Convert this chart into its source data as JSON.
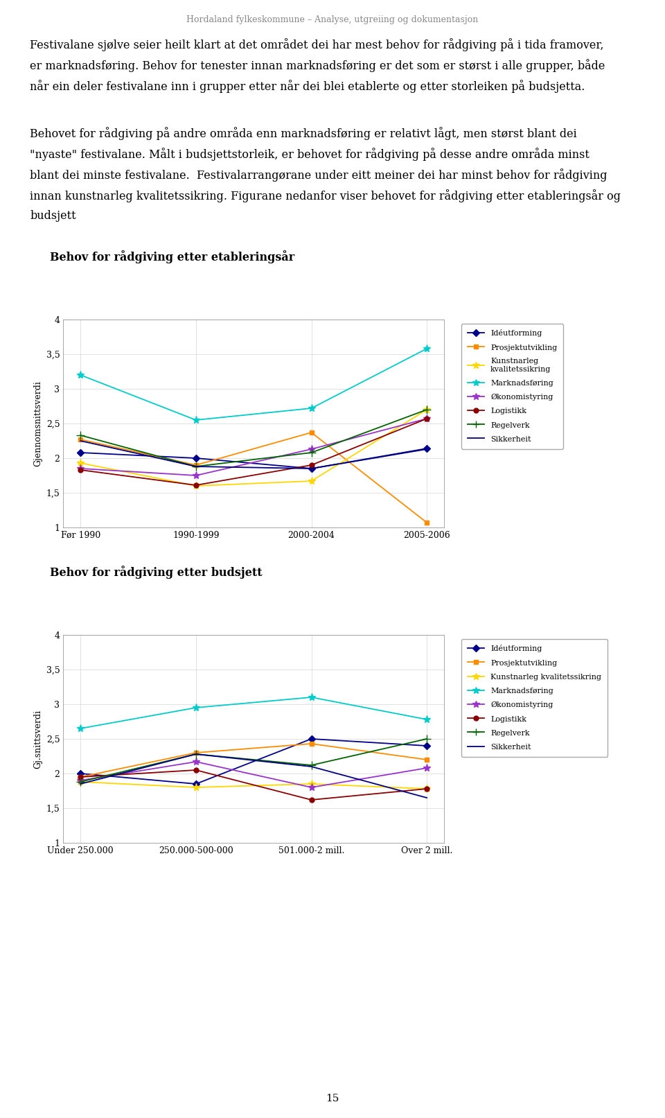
{
  "header_title": "Hordaland fylkeskommune – Analyse, utgreiing og dokumentasjon",
  "page_text_para1": [
    "Festivalane sjølve seier heilt klart at det området dei har mest behov for rådgiving på i tida framover,",
    "er marknadsføring. Behov for tenester innan marknadsføring er det som er størst i alle grupper, både",
    "når ein deler festivalane inn i grupper etter når dei blei etablerte og etter storleiken på budsjetta."
  ],
  "page_text_para2": [
    "Behovet for rådgiving på andre områda enn marknadsføring er relativt lågt, men størst blant dei",
    "\"nyaste\" festivalane. Målt i budsjettstorleik, er behovet for rådgiving på desse andre områda minst",
    "blant dei minste festivalane.  Festivalarrangørane under eitt meiner dei har minst behov for rådgiving",
    "innan kunstnarleg kvalitetssikring. Figurane nedanfor viser behovet for rådgiving etter etableringsår og",
    "budsjett"
  ],
  "chart1": {
    "title": "Behov for rådgiving etter etableringsår",
    "xlabel_categories": [
      "Før 1990",
      "1990-1999",
      "2000-2004",
      "2005-2006"
    ],
    "ylabel": "Gjennomsnittsverdi",
    "ylim": [
      1.0,
      4.0
    ],
    "yticks": [
      1.0,
      1.5,
      2.0,
      2.5,
      3.0,
      3.5,
      4.0
    ],
    "series": {
      "Idéutforming": [
        2.08,
        2.0,
        1.85,
        2.14
      ],
      "Prosjektutvikling": [
        2.27,
        1.9,
        2.37,
        1.07
      ],
      "Kunstnarleg kvalitetssikring": [
        1.93,
        1.6,
        1.67,
        2.7
      ],
      "Marknadsføring": [
        3.2,
        2.55,
        2.72,
        3.58
      ],
      "Økonomistyring": [
        1.85,
        1.75,
        2.13,
        2.57
      ],
      "Logistikk": [
        1.83,
        1.61,
        1.9,
        2.57
      ],
      "Regelverk": [
        2.33,
        1.88,
        2.08,
        2.7
      ],
      "Sikkerheit": [
        2.25,
        1.88,
        1.85,
        2.13
      ]
    },
    "colors": {
      "Idéutforming": "#00008B",
      "Prosjektutvikling": "#FF8C00",
      "Kunstnarleg kvalitetssikring": "#FFD700",
      "Marknadsføring": "#00CCCC",
      "Økonomistyring": "#9933CC",
      "Logistikk": "#8B0000",
      "Regelverk": "#006400",
      "Sikkerheit": "#000080"
    },
    "markers": {
      "Idéutforming": "D",
      "Prosjektutvikling": "s",
      "Kunstnarleg kvalitetssikring": "*",
      "Marknadsføring": "*",
      "Økonomistyring": "*",
      "Logistikk": "o",
      "Regelverk": "+",
      "Sikkerheit": "none"
    },
    "legend_labels": {
      "Kunstnarleg kvalitetssikring": "Kunstnarleg\nkvalitetssikring"
    }
  },
  "chart2": {
    "title": "Behov for rådgiving etter budsjett",
    "xlabel_categories": [
      "Under 250.000",
      "250.000-500-000",
      "501.000-2 mill.",
      "Over 2 mill."
    ],
    "ylabel": "Gj.snittsverdi",
    "ylim": [
      1.0,
      4.0
    ],
    "yticks": [
      1.0,
      1.5,
      2.0,
      2.5,
      3.0,
      3.5,
      4.0
    ],
    "series": {
      "Idéutforming": [
        2.0,
        1.85,
        2.5,
        2.4
      ],
      "Prosjektutvikling": [
        1.95,
        2.3,
        2.43,
        2.2
      ],
      "Kunstnarleg kvalitetssikring": [
        1.88,
        1.8,
        1.85,
        1.78
      ],
      "Marknadsføring": [
        2.65,
        2.95,
        3.1,
        2.78
      ],
      "Økonomistyring": [
        1.9,
        2.17,
        1.8,
        2.08
      ],
      "Logistikk": [
        1.95,
        2.05,
        1.62,
        1.78
      ],
      "Regelverk": [
        1.88,
        2.28,
        2.12,
        2.5
      ],
      "Sikkerheit": [
        1.85,
        2.28,
        2.1,
        1.65
      ]
    },
    "colors": {
      "Idéutforming": "#00008B",
      "Prosjektutvikling": "#FF8C00",
      "Kunstnarleg kvalitetssikring": "#FFD700",
      "Marknadsføring": "#00CCCC",
      "Økonomistyring": "#9933CC",
      "Logistikk": "#8B0000",
      "Regelverk": "#006400",
      "Sikkerheit": "#000080"
    },
    "markers": {
      "Idéutforming": "D",
      "Prosjektutvikling": "s",
      "Kunstnarleg kvalitetssikring": "*",
      "Marknadsføring": "*",
      "Økonomistyring": "*",
      "Logistikk": "o",
      "Regelverk": "+",
      "Sikkerheit": "none"
    }
  },
  "page_number": "15",
  "bg_color": "#FFFFFF",
  "text_color": "#000000"
}
